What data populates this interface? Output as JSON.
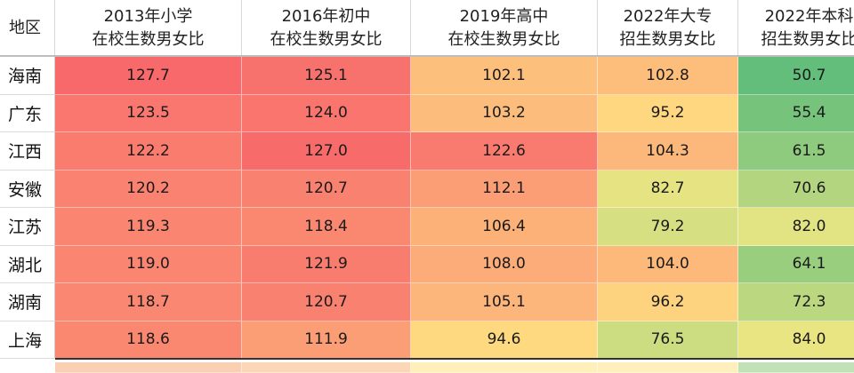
{
  "chart_data": {
    "type": "table",
    "row_header": "地区",
    "columns": [
      [
        "2013年小学",
        "在校生数男女比"
      ],
      [
        "2016年初中",
        "在校生数男女比"
      ],
      [
        "2019年高中",
        "在校生数男女比"
      ],
      [
        "2022年大专",
        "招生数男女比"
      ],
      [
        "2022年本科",
        "招生数男女比"
      ]
    ],
    "rows": [
      {
        "region": "海南",
        "values": [
          127.7,
          125.1,
          102.1,
          102.8,
          50.7
        ]
      },
      {
        "region": "广东",
        "values": [
          123.5,
          124.0,
          103.2,
          95.2,
          55.4
        ]
      },
      {
        "region": "江西",
        "values": [
          122.2,
          127.0,
          122.6,
          104.3,
          61.5
        ]
      },
      {
        "region": "安徽",
        "values": [
          120.2,
          120.7,
          112.1,
          82.7,
          70.6
        ]
      },
      {
        "region": "江苏",
        "values": [
          119.3,
          118.4,
          106.4,
          79.2,
          82.0
        ]
      },
      {
        "region": "湖北",
        "values": [
          119.0,
          121.9,
          108.0,
          104.0,
          64.1
        ]
      },
      {
        "region": "湖南",
        "values": [
          118.7,
          120.7,
          105.1,
          96.2,
          72.3
        ]
      },
      {
        "region": "上海",
        "values": [
          118.6,
          111.9,
          94.6,
          76.5,
          84.0
        ]
      }
    ],
    "color_scale": {
      "low": "#63be7b",
      "mid": "#ffeb84",
      "high": "#f8696b"
    }
  }
}
